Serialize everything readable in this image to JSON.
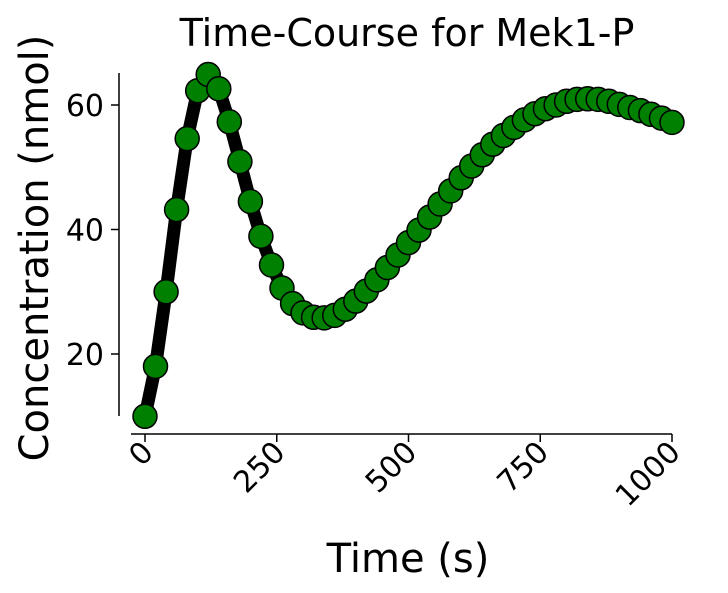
{
  "chart_data": {
    "type": "line",
    "title": "Time-Course for Mek1-P",
    "xlabel": "Time (s)",
    "ylabel": "Concentration (nmol)",
    "xlim": [
      -20,
      1000
    ],
    "ylim": [
      9,
      65
    ],
    "x_ticks": [
      0,
      250,
      500,
      750,
      1000
    ],
    "x_tick_labels": [
      "0",
      "250",
      "500",
      "750",
      "1000"
    ],
    "y_ticks": [
      20,
      40,
      60
    ],
    "y_tick_labels": [
      "20",
      "40",
      "60"
    ],
    "x_tick_rotation_deg": 45,
    "grid": false,
    "spines": "left-bottom",
    "line_color": "#000000",
    "marker_face_color": "#008000",
    "marker_edge_color": "#000000",
    "marker": "circle",
    "series": [
      {
        "x": [
          0,
          20,
          40,
          60,
          80,
          100,
          120,
          140,
          160,
          180,
          200,
          220,
          240,
          260,
          280,
          300,
          320,
          340,
          360,
          380,
          400,
          420,
          440,
          460,
          480,
          500,
          520,
          540,
          560,
          580,
          600,
          620,
          640,
          660,
          680,
          700,
          720,
          740,
          760,
          780,
          800,
          820,
          840,
          860,
          880,
          900,
          920,
          940,
          960,
          980,
          1000
        ],
        "y": [
          10,
          18,
          30,
          43.2,
          54.6,
          62.3,
          64.9,
          62.6,
          57.3,
          50.9,
          44.5,
          38.9,
          34.3,
          30.6,
          28.1,
          26.6,
          25.9,
          25.8,
          26.2,
          27.2,
          28.5,
          30.1,
          31.9,
          33.9,
          35.9,
          37.9,
          39.9,
          42,
          44.1,
          46.2,
          48.3,
          50.2,
          52,
          53.7,
          55.1,
          56.4,
          57.6,
          58.6,
          59.4,
          60,
          60.6,
          60.9,
          61,
          60.9,
          60.6,
          60.1,
          59.6,
          59.1,
          58.5,
          57.9,
          57.2
        ]
      }
    ]
  }
}
